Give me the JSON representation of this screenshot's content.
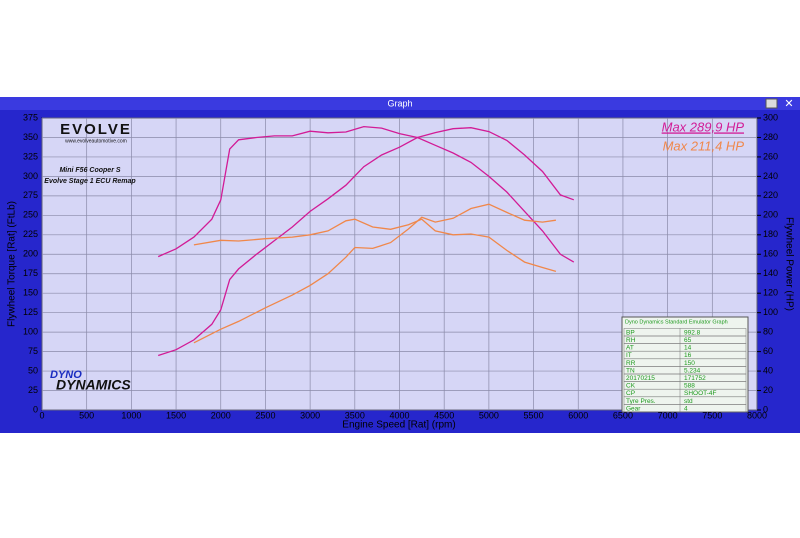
{
  "chart_data": {
    "type": "line",
    "window_title": "Graph",
    "xlabel": "Engine Speed [Rat] (rpm)",
    "ylabel": "Flywheel Torque [Rat] (FtLb)",
    "y2label": "Flywheel Power (HP)",
    "xlim": [
      0,
      8000
    ],
    "xticks": [
      0,
      500,
      1000,
      1500,
      2000,
      2500,
      3000,
      3500,
      4000,
      4500,
      5000,
      5500,
      6000,
      6500,
      7000,
      7500,
      8000
    ],
    "ylim": [
      0,
      375
    ],
    "yticks": [
      0,
      25,
      50,
      75,
      100,
      125,
      150,
      175,
      200,
      225,
      250,
      275,
      300,
      325,
      350,
      375
    ],
    "y2lim": [
      0,
      300
    ],
    "y2ticks": [
      0,
      20,
      40,
      60,
      80,
      100,
      120,
      140,
      160,
      180,
      200,
      220,
      240,
      260,
      280,
      300
    ],
    "grid": true,
    "annotations": [
      "Mini F56 Cooper S",
      "Evolve Stage 1 ECU Remap"
    ],
    "legend_texts": [
      {
        "text": "Max 289,9 HP",
        "color": "#d21b96"
      },
      {
        "text": "Max 211,4 HP",
        "color": "#f0874a"
      }
    ],
    "logos": [
      "EVOLVE",
      "www.evolveautomotive.com",
      "DYNO",
      "DYNAMICS"
    ],
    "series": [
      {
        "color": "#d21b96",
        "axis": "y",
        "x": [
          1300,
          1500,
          1700,
          1900,
          2000,
          2100,
          2200,
          2400,
          2600,
          2800,
          3000,
          3200,
          3400,
          3600,
          3800,
          4000,
          4200,
          4400,
          4600,
          4800,
          5000,
          5200,
          5400,
          5600,
          5800,
          5950
        ],
        "values": [
          197,
          207,
          222,
          245,
          270,
          335,
          347,
          350,
          352,
          352,
          358,
          356,
          357,
          364,
          362,
          355,
          350,
          340,
          330,
          318,
          300,
          280,
          255,
          230,
          200,
          190
        ]
      },
      {
        "color": "#d21b96",
        "axis": "y2",
        "x": [
          1300,
          1500,
          1700,
          1900,
          2000,
          2100,
          2200,
          2400,
          2600,
          2800,
          3000,
          3200,
          3400,
          3600,
          3800,
          4000,
          4200,
          4400,
          4600,
          4800,
          5000,
          5200,
          5400,
          5600,
          5800,
          5950
        ],
        "values": [
          56,
          62,
          72,
          88,
          103,
          134,
          145,
          160,
          174,
          188,
          204,
          217,
          231,
          250,
          262,
          270,
          280,
          285,
          289,
          290,
          286,
          277,
          262,
          245,
          221,
          216
        ]
      },
      {
        "color": "#f0874a",
        "axis": "y",
        "x": [
          1700,
          2000,
          2200,
          2500,
          2800,
          3000,
          3200,
          3400,
          3500,
          3700,
          3900,
          4100,
          4250,
          4400,
          4600,
          4800,
          5000,
          5200,
          5400,
          5600,
          5750
        ],
        "values": [
          212,
          218,
          217,
          220,
          222,
          225,
          230,
          243,
          245,
          235,
          232,
          238,
          245,
          230,
          225,
          226,
          222,
          205,
          190,
          183,
          178
        ]
      },
      {
        "color": "#f0874a",
        "axis": "y2",
        "x": [
          1700,
          2000,
          2200,
          2500,
          2800,
          3000,
          3200,
          3400,
          3500,
          3700,
          3900,
          4100,
          4250,
          4400,
          4600,
          4800,
          5000,
          5200,
          5400,
          5600,
          5750
        ],
        "values": [
          69,
          83,
          91,
          105,
          118,
          128,
          140,
          157,
          167,
          166,
          172,
          186,
          198,
          193,
          197,
          207,
          211.4,
          203,
          195,
          193,
          195
        ]
      }
    ],
    "table": {
      "header": "Dyno Dynamics Standard Emulator Graph",
      "rows": [
        [
          "BP",
          "992.8"
        ],
        [
          "RH",
          "65"
        ],
        [
          "AT",
          "14"
        ],
        [
          "IT",
          "16"
        ],
        [
          "RR",
          "150"
        ],
        [
          "TN",
          "5.234"
        ],
        [
          "20170215",
          "171752"
        ],
        [
          "CK",
          "588"
        ],
        [
          "CP",
          "SHOOT-4F"
        ],
        [
          "Tyre Pres.",
          "std"
        ],
        [
          "Gear",
          "4"
        ]
      ]
    }
  }
}
